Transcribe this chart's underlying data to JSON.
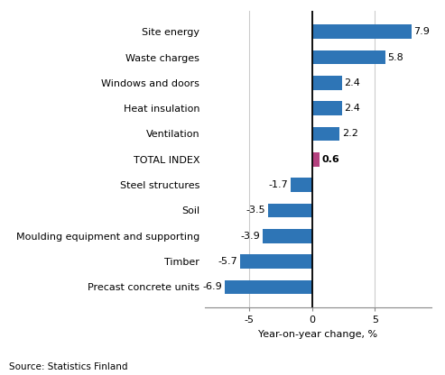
{
  "categories": [
    "Precast concrete units",
    "Timber",
    "Moulding equipment and supporting",
    "Soil",
    "Steel structures",
    "TOTAL INDEX",
    "Ventilation",
    "Heat insulation",
    "Windows and doors",
    "Waste charges",
    "Site energy"
  ],
  "values": [
    -6.9,
    -5.7,
    -3.9,
    -3.5,
    -1.7,
    0.6,
    2.2,
    2.4,
    2.4,
    5.8,
    7.9
  ],
  "bar_colors": [
    "#2e75b6",
    "#2e75b6",
    "#2e75b6",
    "#2e75b6",
    "#2e75b6",
    "#b4417e",
    "#2e75b6",
    "#2e75b6",
    "#2e75b6",
    "#2e75b6",
    "#2e75b6"
  ],
  "xlabel": "Year-on-year change, %",
  "xlim": [
    -8.5,
    9.5
  ],
  "xticks": [
    -5,
    0,
    5
  ],
  "source_text": "Source: Statistics Finland",
  "label_fontsize": 8.0,
  "tick_fontsize": 8.0,
  "bar_height": 0.55,
  "background_color": "#ffffff",
  "grid_color": "#cccccc"
}
